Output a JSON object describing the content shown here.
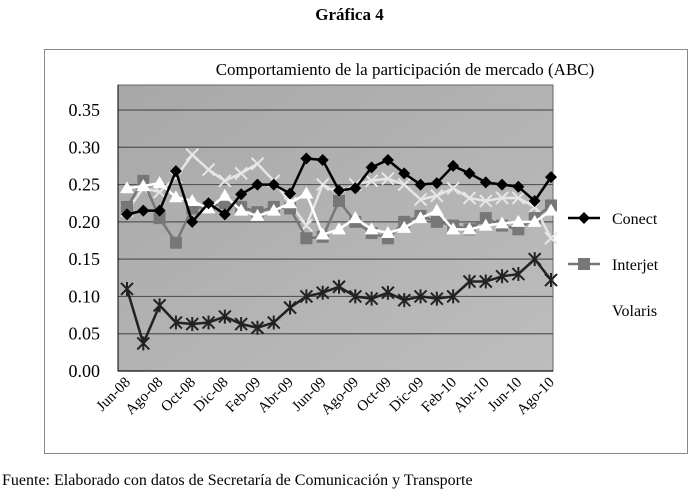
{
  "figure_title": "Gráfica 4",
  "source": "Fuente: Elaborado con datos de Secretaría de Comunicación y Transporte",
  "chart_data": {
    "type": "line",
    "title": "Comportamiento de la participación de mercado (ABC)",
    "xlabel": "",
    "ylabel": "",
    "ylim": [
      0,
      0.35
    ],
    "yticks": [
      "0.00",
      "0.05",
      "0.10",
      "0.15",
      "0.20",
      "0.25",
      "0.30",
      "0.35"
    ],
    "grid": true,
    "legend": "right",
    "x": [
      "Jun-08",
      "Jul-08",
      "Ago-08",
      "Sep-08",
      "Oct-08",
      "Nov-08",
      "Dic-08",
      "Ene-09",
      "Feb-09",
      "Mar-09",
      "Abr-09",
      "May-09",
      "Jun-09",
      "Jul-09",
      "Ago-09",
      "Sep-09",
      "Oct-09",
      "Nov-09",
      "Dic-09",
      "Ene-10",
      "Feb-10",
      "Mar-10",
      "Abr-10",
      "May-10",
      "Jun-10",
      "Jul-10",
      "Ago-10"
    ],
    "xtick_labels": [
      "Jun-08",
      "Ago-08",
      "Oct-08",
      "Dic-08",
      "Feb-09",
      "Abr-09",
      "Jun-09",
      "Ago-09",
      "Oct-09",
      "Dic-09",
      "Feb-10",
      "Abr-10",
      "Jun-10",
      "Ago-10"
    ],
    "series": [
      {
        "name": "Conect",
        "marker": "diamond",
        "color": "#000000",
        "values": [
          0.21,
          0.215,
          0.215,
          0.268,
          0.2,
          0.225,
          0.21,
          0.237,
          0.25,
          0.25,
          0.238,
          0.285,
          0.283,
          0.242,
          0.245,
          0.273,
          0.283,
          0.265,
          0.25,
          0.252,
          0.275,
          0.265,
          0.253,
          0.25,
          0.247,
          0.228,
          0.26
        ]
      },
      {
        "name": "Interjet",
        "marker": "square",
        "color": "#777777",
        "values": [
          0.22,
          0.255,
          0.205,
          0.172,
          0.218,
          0.22,
          0.225,
          0.22,
          0.213,
          0.22,
          0.218,
          0.178,
          0.18,
          0.228,
          0.2,
          0.185,
          0.178,
          0.2,
          0.208,
          0.2,
          0.195,
          0.19,
          0.205,
          0.195,
          0.19,
          0.205,
          0.222
        ]
      },
      {
        "name": "Volaris",
        "marker": "triangle",
        "color": "#ffffff",
        "values": [
          0.245,
          0.248,
          0.252,
          0.233,
          0.228,
          0.218,
          0.235,
          0.215,
          0.208,
          0.215,
          0.225,
          0.238,
          0.183,
          0.19,
          0.205,
          0.19,
          0.185,
          0.192,
          0.205,
          0.215,
          0.19,
          0.19,
          0.195,
          0.198,
          0.2,
          0.2,
          0.215
        ]
      },
      {
        "marker": "x",
        "color": "#e6e6e6",
        "values": [
          0.215,
          0.245,
          0.24,
          0.26,
          0.29,
          0.27,
          0.255,
          0.265,
          0.278,
          0.255,
          0.225,
          0.195,
          0.25,
          0.238,
          0.25,
          0.255,
          0.258,
          0.25,
          0.23,
          0.235,
          0.245,
          0.232,
          0.228,
          0.232,
          0.232,
          0.22,
          0.178
        ]
      },
      {
        "marker": "asterisk",
        "color": "#222222",
        "values": [
          0.11,
          0.037,
          0.088,
          0.065,
          0.063,
          0.065,
          0.073,
          0.063,
          0.058,
          0.065,
          0.085,
          0.1,
          0.105,
          0.113,
          0.1,
          0.097,
          0.105,
          0.095,
          0.1,
          0.097,
          0.1,
          0.12,
          0.12,
          0.127,
          0.13,
          0.15,
          0.122
        ]
      }
    ]
  }
}
